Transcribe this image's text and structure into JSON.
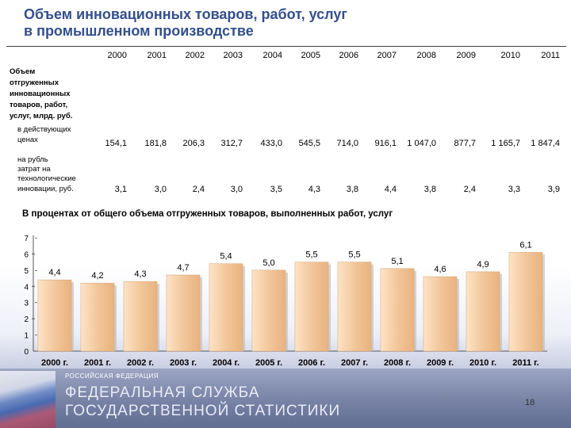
{
  "title": {
    "line1": "Объем инновационных товаров, работ, услуг",
    "line2": "в промышленном производстве"
  },
  "table": {
    "years": [
      "2000",
      "2001",
      "2002",
      "2003",
      "2004",
      "2005",
      "2006",
      "2007",
      "2008",
      "2009",
      "2010",
      "2011"
    ],
    "header_label": [
      "Объем",
      "отгруженных",
      "инновационных",
      "товаров, работ,",
      "услуг, млрд. руб."
    ],
    "rows": [
      {
        "label": [
          "в действующих",
          "ценах"
        ],
        "values": [
          "154,1",
          "181,8",
          "206,3",
          "312,7",
          "433,0",
          "545,5",
          "714,0",
          "916,1",
          "1 047,0",
          "877,7",
          "1 165,7",
          "1 847,4"
        ]
      },
      {
        "label": [
          "на рубль",
          "затрат на",
          "технологические",
          "инновации, руб."
        ],
        "values": [
          "3,1",
          "3,0",
          "2,4",
          "3,0",
          "3,5",
          "4,3",
          "3,8",
          "4,4",
          "3,8",
          "2,4",
          "3,3",
          "3,9"
        ]
      }
    ]
  },
  "chart_data": {
    "type": "bar",
    "title": "В процентах от общего объема отгруженных товаров, выполненных работ, услуг",
    "categories": [
      "2000 г.",
      "2001 г.",
      "2002 г.",
      "2003 г.",
      "2004 г.",
      "2005 г.",
      "2006 г.",
      "2007 г.",
      "2008 г.",
      "2009 г.",
      "2010 г.",
      "2011 г."
    ],
    "values": [
      4.4,
      4.2,
      4.3,
      4.7,
      5.4,
      5.0,
      5.5,
      5.5,
      5.1,
      4.6,
      4.9,
      6.1
    ],
    "value_labels": [
      "4,4",
      "4,2",
      "4,3",
      "4,7",
      "5,4",
      "5,0",
      "5,5",
      "5,5",
      "5,1",
      "4,6",
      "4,9",
      "6,1"
    ],
    "y_ticks": [
      "0",
      "1",
      "2",
      "3",
      "4",
      "5",
      "6",
      "7"
    ],
    "ylim": [
      0,
      7
    ],
    "xlabel": "",
    "ylabel": "",
    "bar_color": "#f2c79b",
    "grid": false
  },
  "footer": {
    "small": "РОССИЙСКАЯ ФЕДЕРАЦИЯ",
    "line1": "ФЕДЕРАЛЬНАЯ СЛУЖБА",
    "line2": "ГОСУДАРСТВЕННОЙ СТАТИСТИКИ",
    "page": "18"
  }
}
